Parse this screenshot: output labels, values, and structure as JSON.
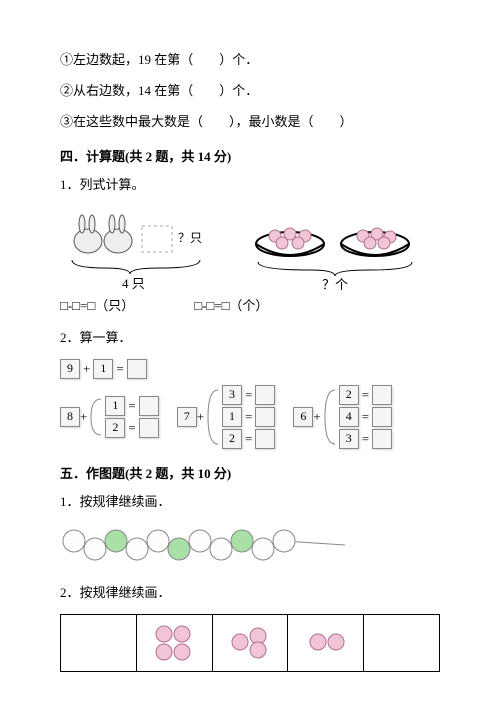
{
  "q1": "①左边数起，19 在第（　　）个．",
  "q2": "②从右边数，14 在第（　　）个．",
  "q3": "③在这些数中最大数是（　　），最小数是（　　）",
  "section4": "四．计算题(共 2 题，共 14 分)",
  "s4_1": "1．列式计算。",
  "fig1_qlabel": "？只",
  "fig1_count": "4 只",
  "fig2_qlabel": "？个",
  "formula1": "□-□=□（只）",
  "formula2": "□-□=□（个）",
  "s4_2": "2．算一算．",
  "calc": {
    "n9": "9",
    "n1": "1",
    "n8": "8",
    "n7": "7",
    "n3": "3",
    "n2": "2",
    "n6": "6",
    "n4": "4",
    "plus": "+",
    "eq": "="
  },
  "section5": "五．作图题(共 2 题，共 10 分)",
  "s5_1": "1．按规律继续画．",
  "s5_2": "2．按规律继续画．",
  "colors": {
    "pink": "#f2c4d8",
    "pink_stroke": "#b07090",
    "green": "#a8e0a8",
    "white": "#fdfdfd",
    "bead_stroke": "#888",
    "bowl": "#333"
  },
  "beads": [
    "w",
    "w",
    "g",
    "w",
    "w",
    "g",
    "w",
    "w",
    "g",
    "w",
    "w"
  ],
  "pattern_row": [
    {
      "dots": []
    },
    {
      "dots": [
        [
          22,
          18
        ],
        [
          40,
          18
        ],
        [
          22,
          36
        ],
        [
          40,
          36
        ]
      ]
    },
    {
      "dots": [
        [
          22,
          26
        ],
        [
          40,
          20
        ],
        [
          40,
          34
        ]
      ]
    },
    {
      "dots": [
        [
          24,
          26
        ],
        [
          42,
          26
        ]
      ]
    },
    {
      "dots": []
    }
  ]
}
